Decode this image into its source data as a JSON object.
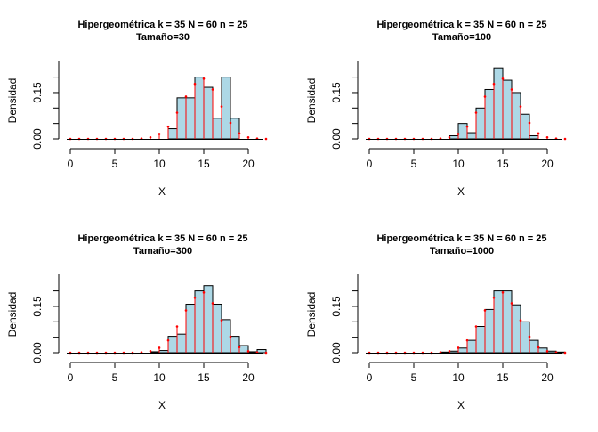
{
  "figure": {
    "background": "#ffffff",
    "bar_fill": "#add8e6",
    "bar_stroke": "#000000",
    "pmf_color": "#ff0000"
  },
  "chart_data": [
    {
      "type": "bar",
      "title": "Hipergeométrica k = 35 N = 60 n = 25",
      "subtitle": "Tamaño=30",
      "xlabel": "X",
      "ylabel": "Densidad",
      "xlim": [
        -1,
        22
      ],
      "ylim": [
        0,
        0.23
      ],
      "xticks": [
        "0",
        "5",
        "10",
        "15",
        "20"
      ],
      "yticks": [
        "0.00",
        "0.15"
      ],
      "histogram": {
        "bin_starts": [
          11,
          12,
          13,
          14,
          15,
          16,
          17,
          18
        ],
        "values": [
          0.033,
          0.133,
          0.133,
          0.2,
          0.167,
          0.067,
          0.2,
          0.067
        ]
      },
      "pmf": {
        "x": [
          0,
          1,
          2,
          3,
          4,
          5,
          6,
          7,
          8,
          9,
          10,
          11,
          12,
          13,
          14,
          15,
          16,
          17,
          18,
          19,
          20,
          21,
          22
        ],
        "values": [
          0,
          0,
          0,
          0,
          0,
          0,
          0,
          0,
          0.001,
          0.005,
          0.016,
          0.04,
          0.085,
          0.137,
          0.178,
          0.195,
          0.16,
          0.105,
          0.052,
          0.018,
          0.005,
          0.001,
          0
        ]
      }
    },
    {
      "type": "bar",
      "title": "Hipergeométrica k = 35 N = 60 n = 25",
      "subtitle": "Tamaño=100",
      "xlabel": "X",
      "ylabel": "Densidad",
      "xlim": [
        -1,
        22
      ],
      "ylim": [
        0,
        0.23
      ],
      "xticks": [
        "0",
        "5",
        "10",
        "15",
        "20"
      ],
      "yticks": [
        "0.00",
        "0.15"
      ],
      "histogram": {
        "bin_starts": [
          9,
          10,
          11,
          12,
          13,
          14,
          15,
          16,
          17,
          18
        ],
        "values": [
          0.01,
          0.05,
          0.02,
          0.1,
          0.16,
          0.23,
          0.19,
          0.15,
          0.08,
          0.01
        ]
      },
      "pmf": {
        "x": [
          0,
          1,
          2,
          3,
          4,
          5,
          6,
          7,
          8,
          9,
          10,
          11,
          12,
          13,
          14,
          15,
          16,
          17,
          18,
          19,
          20,
          21,
          22
        ],
        "values": [
          0,
          0,
          0,
          0,
          0,
          0,
          0,
          0,
          0.001,
          0.005,
          0.016,
          0.04,
          0.085,
          0.137,
          0.178,
          0.195,
          0.16,
          0.105,
          0.052,
          0.018,
          0.005,
          0.001,
          0
        ]
      }
    },
    {
      "type": "bar",
      "title": "Hipergeométrica k = 35 N = 60 n = 25",
      "subtitle": "Tamaño=300",
      "xlabel": "X",
      "ylabel": "Densidad",
      "xlim": [
        -1,
        22
      ],
      "ylim": [
        0,
        0.23
      ],
      "xticks": [
        "0",
        "5",
        "10",
        "15",
        "20"
      ],
      "yticks": [
        "0.00",
        "0.15"
      ],
      "histogram": {
        "bin_starts": [
          9,
          10,
          11,
          12,
          13,
          14,
          15,
          16,
          17,
          18,
          19,
          20,
          21
        ],
        "values": [
          0.003,
          0.007,
          0.053,
          0.06,
          0.157,
          0.2,
          0.217,
          0.157,
          0.107,
          0.053,
          0.023,
          0.003,
          0.01
        ]
      },
      "pmf": {
        "x": [
          0,
          1,
          2,
          3,
          4,
          5,
          6,
          7,
          8,
          9,
          10,
          11,
          12,
          13,
          14,
          15,
          16,
          17,
          18,
          19,
          20,
          21,
          22
        ],
        "values": [
          0,
          0,
          0,
          0,
          0,
          0,
          0,
          0,
          0.001,
          0.005,
          0.016,
          0.04,
          0.085,
          0.137,
          0.178,
          0.195,
          0.16,
          0.105,
          0.052,
          0.018,
          0.005,
          0.001,
          0
        ]
      }
    },
    {
      "type": "bar",
      "title": "Hipergeométrica k = 35 N = 60 n = 25",
      "subtitle": "Tamaño=1000",
      "xlabel": "X",
      "ylabel": "Densidad",
      "xlim": [
        -1,
        22
      ],
      "ylim": [
        0,
        0.23
      ],
      "xticks": [
        "0",
        "5",
        "10",
        "15",
        "20"
      ],
      "yticks": [
        "0.00",
        "0.15"
      ],
      "histogram": {
        "bin_starts": [
          8,
          9,
          10,
          11,
          12,
          13,
          14,
          15,
          16,
          17,
          18,
          19,
          20,
          21
        ],
        "values": [
          0.002,
          0.005,
          0.015,
          0.04,
          0.085,
          0.14,
          0.2,
          0.2,
          0.155,
          0.1,
          0.04,
          0.015,
          0.005,
          0.002
        ]
      },
      "pmf": {
        "x": [
          0,
          1,
          2,
          3,
          4,
          5,
          6,
          7,
          8,
          9,
          10,
          11,
          12,
          13,
          14,
          15,
          16,
          17,
          18,
          19,
          20,
          21,
          22
        ],
        "values": [
          0,
          0,
          0,
          0,
          0,
          0,
          0,
          0,
          0.001,
          0.005,
          0.016,
          0.04,
          0.085,
          0.137,
          0.178,
          0.195,
          0.16,
          0.105,
          0.052,
          0.018,
          0.005,
          0.001,
          0
        ]
      }
    }
  ]
}
